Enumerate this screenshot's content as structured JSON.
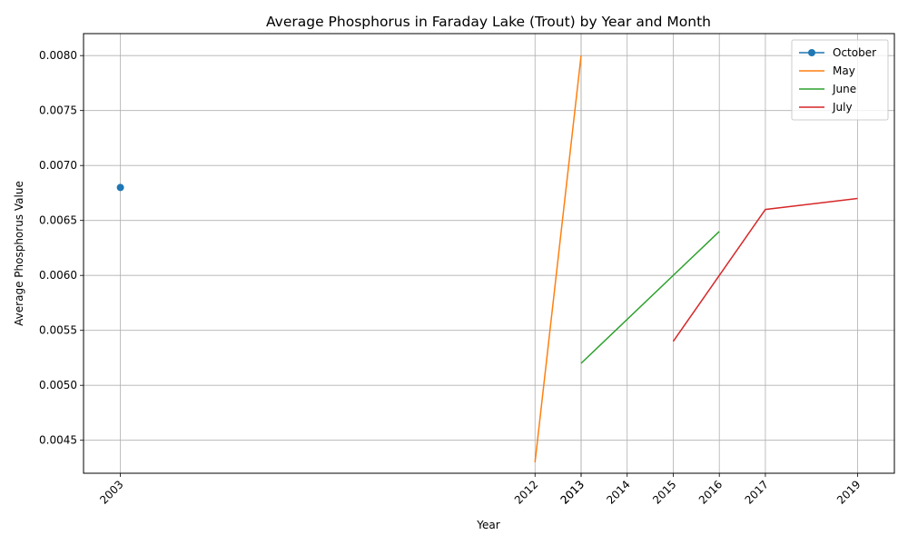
{
  "chart_data": {
    "type": "line",
    "title": "Average Phosphorus in Faraday Lake (Trout) by Year and Month",
    "xlabel": "Year",
    "ylabel": "Average Phosphorus Value",
    "xlim": [
      2002.2,
      2019.8
    ],
    "ylim": [
      0.0042,
      0.0082
    ],
    "x_ticks": [
      "2003",
      "2012",
      "2013",
      "2013",
      "2014",
      "2015",
      "2016",
      "2017",
      "2019"
    ],
    "x_tick_values": [
      2003,
      2012,
      2013,
      2013,
      2014,
      2015,
      2016,
      2017,
      2019
    ],
    "y_ticks": [
      "0.0045",
      "0.0050",
      "0.0055",
      "0.0060",
      "0.0065",
      "0.0070",
      "0.0075",
      "0.0080"
    ],
    "y_tick_values": [
      0.0045,
      0.005,
      0.0055,
      0.006,
      0.0065,
      0.007,
      0.0075,
      0.008
    ],
    "grid": true,
    "legend_position": "top-right",
    "series": [
      {
        "name": "October",
        "color": "#1f77b4",
        "marker": "circle",
        "x": [
          2003
        ],
        "y": [
          0.0068
        ]
      },
      {
        "name": "May",
        "color": "#ff7f0e",
        "marker": "none",
        "x": [
          2012,
          2013
        ],
        "y": [
          0.0043,
          0.008
        ]
      },
      {
        "name": "June",
        "color": "#2ca02c",
        "marker": "none",
        "x": [
          2013,
          2016
        ],
        "y": [
          0.0052,
          0.0064
        ]
      },
      {
        "name": "July",
        "color": "#d62728",
        "marker": "none",
        "x": [
          2015,
          2017,
          2019
        ],
        "y": [
          0.0054,
          0.0066,
          0.0067
        ]
      }
    ]
  }
}
